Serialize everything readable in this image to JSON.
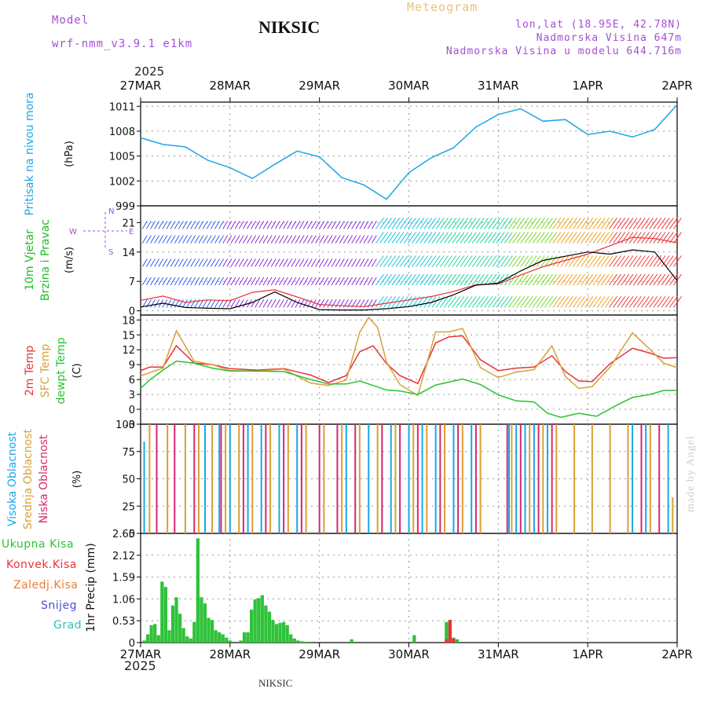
{
  "header": {
    "model_label": "Model",
    "model_value": "wrf-nmm_v3.9.1 e1km",
    "station": "NIKSIC",
    "meteogram": "Meteogram",
    "coords": "lon,lat (18.95E, 42.78N)",
    "elev": "Nadmorska Visina 647m",
    "elev_model": "Nadmorska Visina u modelu 644.716m",
    "year_top": "2025",
    "year_bottom": "2025",
    "footer_station": "NIKSIC",
    "credit": "made by Angel"
  },
  "colors": {
    "pressure": "#1aa7e8",
    "temp2m": "#e8333a",
    "sfc": "#d9a035",
    "dewpt": "#27c233",
    "high_cloud": "#1aa7e8",
    "mid_cloud": "#d9a035",
    "low_cloud": "#d8266e",
    "total_precip": "#2fc23a",
    "conv_precip": "#e8333a",
    "frz_precip": "#ef7a30",
    "snow": "#4b4bdb",
    "grad": "#2bbfbf",
    "wind_label": "#22bb22",
    "violet": "#a24fd6",
    "tan": "#e8c27a"
  },
  "chart_data": {
    "type": "meteogram",
    "x_axis": {
      "tick_labels": [
        "27MAR",
        "28MAR",
        "29MAR",
        "30MAR",
        "31MAR",
        "1APR",
        "2APR"
      ],
      "range_days": [
        0,
        6
      ]
    },
    "panels": [
      {
        "id": "pressure",
        "type": "line",
        "ylabel": "Pritisak na nivou mora",
        "unit": "(hPa)",
        "ylim": [
          999,
          1011.5
        ],
        "ticks": [
          999,
          1002,
          1005,
          1008,
          1011
        ],
        "grid": true,
        "series": [
          {
            "name": "Pritisak na nivou mora",
            "x": [
              0,
              0.25,
              0.5,
              0.75,
              1.0,
              1.25,
              1.5,
              1.75,
              2.0,
              2.25,
              2.5,
              2.75,
              3.0,
              3.25,
              3.5,
              3.75,
              4.0,
              4.25,
              4.5,
              4.75,
              5.0,
              5.25,
              5.5,
              5.75,
              6.0
            ],
            "values": [
              1007.2,
              1006.4,
              1006.1,
              1004.5,
              1003.6,
              1002.3,
              1004.0,
              1005.6,
              1004.9,
              1002.4,
              1001.5,
              999.8,
              1003.0,
              1004.8,
              1006.0,
              1008.5,
              1010.0,
              1010.7,
              1009.2,
              1009.4,
              1007.6,
              1008.0,
              1007.3,
              1008.2,
              1011.2
            ]
          }
        ]
      },
      {
        "id": "wind",
        "type": "line",
        "ylabel": [
          "10m Vjetar",
          "Brzina i Pravac"
        ],
        "unit": "(m/s)",
        "ylim": [
          -1,
          25
        ],
        "ticks": [
          0,
          7,
          14,
          21
        ],
        "grid": true,
        "compass": {
          "n": "N",
          "s": "S",
          "e": "E",
          "w": "W"
        },
        "series": [
          {
            "name": "speed",
            "x": [
              0,
              0.25,
              0.5,
              0.75,
              1.0,
              1.25,
              1.5,
              1.75,
              2.0,
              2.25,
              2.5,
              2.75,
              3.0,
              3.25,
              3.5,
              3.75,
              4.0,
              4.25,
              4.5,
              4.75,
              5.0,
              5.25,
              5.5,
              5.75,
              6.0
            ],
            "values": [
              2.5,
              3.5,
              2.0,
              2.6,
              2.4,
              4.4,
              5.0,
              3.3,
              1.5,
              1.2,
              1.0,
              1.8,
              2.6,
              3.4,
              4.6,
              6.2,
              6.4,
              8.5,
              10.5,
              12.0,
              13.5,
              15.5,
              17.5,
              17.2,
              16.2
            ]
          },
          {
            "name": "gust",
            "x": [
              0,
              0.25,
              0.5,
              0.75,
              1.0,
              1.25,
              1.5,
              1.75,
              2.0,
              2.25,
              2.5,
              2.75,
              3.0,
              3.25,
              3.5,
              3.75,
              4.0,
              4.25,
              4.5,
              4.75,
              5.0,
              5.25,
              5.5,
              5.75,
              6.0
            ],
            "values": [
              0.9,
              1.8,
              0.8,
              0.6,
              0.5,
              2.0,
              4.5,
              2.0,
              0.3,
              0.2,
              0.2,
              0.5,
              1.0,
              2.0,
              3.8,
              6.1,
              6.6,
              9.5,
              12.0,
              13.0,
              14.0,
              13.5,
              14.5,
              14.0,
              7.2
            ]
          }
        ]
      },
      {
        "id": "temperature",
        "type": "line",
        "ylabel": [
          "2m Temp",
          "SFC Temp",
          "dewpt Temp"
        ],
        "unit": "(C)",
        "ylim": [
          -3,
          19
        ],
        "ticks": [
          -3,
          0,
          3,
          6,
          9,
          12,
          15,
          18
        ],
        "grid": true,
        "series": [
          {
            "name": "2m Temp",
            "x": [
              0,
              0.1,
              0.25,
              0.4,
              0.6,
              0.8,
              1.0,
              1.3,
              1.6,
              1.9,
              2.1,
              2.3,
              2.45,
              2.6,
              2.75,
              2.9,
              3.1,
              3.3,
              3.45,
              3.6,
              3.8,
              4.0,
              4.2,
              4.4,
              4.6,
              4.75,
              4.9,
              5.05,
              5.25,
              5.5,
              5.7,
              5.85,
              6.0
            ],
            "values": [
              7.8,
              8.5,
              8.5,
              12.8,
              9.3,
              9.0,
              8.2,
              7.9,
              8.2,
              6.9,
              5.4,
              6.8,
              11.6,
              12.8,
              9.2,
              6.8,
              5.2,
              13.4,
              14.6,
              14.8,
              10.0,
              7.8,
              8.3,
              8.5,
              10.8,
              7.6,
              5.7,
              5.6,
              9.2,
              12.3,
              11.3,
              10.3,
              10.4
            ]
          },
          {
            "name": "SFC Temp",
            "x": [
              0,
              0.1,
              0.25,
              0.4,
              0.6,
              0.8,
              1.0,
              1.3,
              1.6,
              1.9,
              2.1,
              2.3,
              2.45,
              2.55,
              2.65,
              2.75,
              2.9,
              3.1,
              3.3,
              3.45,
              3.6,
              3.8,
              4.0,
              4.2,
              4.4,
              4.6,
              4.75,
              4.9,
              5.05,
              5.25,
              5.5,
              5.7,
              5.85,
              6.0
            ],
            "values": [
              6.7,
              7.4,
              8.3,
              15.8,
              9.7,
              9.0,
              7.8,
              7.7,
              8.1,
              5.3,
              4.8,
              5.9,
              15.5,
              18.5,
              16.5,
              9.5,
              5.0,
              2.8,
              15.6,
              15.6,
              16.3,
              8.4,
              6.4,
              7.5,
              8.0,
              12.8,
              6.6,
              4.2,
              4.6,
              8.5,
              15.4,
              12.0,
              9.3,
              8.4
            ]
          },
          {
            "name": "dewpt Temp",
            "x": [
              0,
              0.1,
              0.25,
              0.4,
              0.6,
              0.8,
              1.0,
              1.3,
              1.6,
              1.9,
              2.1,
              2.3,
              2.45,
              2.6,
              2.75,
              2.9,
              3.1,
              3.3,
              3.6,
              3.8,
              4.0,
              4.2,
              4.4,
              4.55,
              4.7,
              4.9,
              5.1,
              5.3,
              5.5,
              5.7,
              5.85,
              6.0
            ],
            "values": [
              4.2,
              5.9,
              7.9,
              9.7,
              9.3,
              8.3,
              7.7,
              7.7,
              7.6,
              6.0,
              5.1,
              5.1,
              5.7,
              4.8,
              3.9,
              3.7,
              3.0,
              4.9,
              6.1,
              5.0,
              2.9,
              1.7,
              1.5,
              -0.8,
              -1.6,
              -0.8,
              -1.4,
              0.6,
              2.4,
              3.0,
              3.8,
              3.8
            ]
          }
        ]
      },
      {
        "id": "cloud",
        "type": "bar",
        "ylabel": [
          "Visoka Oblacnost",
          "Srednja Oblacnost",
          "Niska Oblacnost"
        ],
        "unit": "(%)",
        "ylim": [
          0,
          100
        ],
        "ticks": [
          0,
          25,
          50,
          75,
          100
        ],
        "grid": true,
        "series": [
          {
            "name": "Visoka Oblacnost",
            "bars": [
              [
                0.04,
                84
              ],
              [
                0.72,
                100
              ],
              [
                0.88,
                100
              ],
              [
                1.0,
                100
              ],
              [
                1.2,
                100
              ],
              [
                1.35,
                100
              ],
              [
                1.55,
                100
              ],
              [
                1.75,
                100
              ],
              [
                2.3,
                100
              ],
              [
                2.55,
                100
              ],
              [
                2.8,
                100
              ],
              [
                3.0,
                100
              ],
              [
                3.15,
                100
              ],
              [
                3.3,
                100
              ],
              [
                3.5,
                100
              ],
              [
                3.7,
                100
              ],
              [
                4.12,
                100
              ],
              [
                4.2,
                100
              ],
              [
                4.3,
                100
              ],
              [
                4.4,
                100
              ],
              [
                4.55,
                100
              ],
              [
                5.5,
                100
              ],
              [
                5.65,
                100
              ],
              [
                5.9,
                100
              ]
            ]
          },
          {
            "name": "Srednja Oblacnost",
            "bars": [
              [
                0.1,
                100
              ],
              [
                0.3,
                100
              ],
              [
                0.5,
                100
              ],
              [
                0.65,
                100
              ],
              [
                0.8,
                100
              ],
              [
                0.95,
                100
              ],
              [
                1.1,
                100
              ],
              [
                1.25,
                100
              ],
              [
                1.45,
                100
              ],
              [
                1.65,
                100
              ],
              [
                1.85,
                100
              ],
              [
                2.05,
                100
              ],
              [
                2.25,
                100
              ],
              [
                2.45,
                100
              ],
              [
                2.65,
                100
              ],
              [
                2.85,
                100
              ],
              [
                3.05,
                100
              ],
              [
                3.2,
                100
              ],
              [
                3.4,
                100
              ],
              [
                3.6,
                100
              ],
              [
                3.8,
                100
              ],
              [
                4.15,
                100
              ],
              [
                4.35,
                100
              ],
              [
                4.5,
                100
              ],
              [
                4.65,
                100
              ],
              [
                4.85,
                100
              ],
              [
                5.05,
                100
              ],
              [
                5.25,
                100
              ],
              [
                5.45,
                100
              ],
              [
                5.7,
                100
              ],
              [
                5.95,
                33
              ]
            ]
          },
          {
            "name": "Niska Oblacnost",
            "bars": [
              [
                0.18,
                100
              ],
              [
                0.38,
                100
              ],
              [
                0.6,
                100
              ],
              [
                0.9,
                100
              ],
              [
                1.15,
                100
              ],
              [
                1.4,
                100
              ],
              [
                1.6,
                100
              ],
              [
                1.8,
                100
              ],
              [
                2.0,
                100
              ],
              [
                2.2,
                100
              ],
              [
                2.4,
                100
              ],
              [
                2.7,
                100
              ],
              [
                2.9,
                100
              ],
              [
                3.1,
                100
              ],
              [
                3.35,
                100
              ],
              [
                3.55,
                100
              ],
              [
                3.75,
                100
              ],
              [
                4.1,
                100
              ],
              [
                4.25,
                100
              ],
              [
                4.45,
                100
              ],
              [
                4.6,
                100
              ],
              [
                5.6,
                100
              ],
              [
                5.8,
                100
              ]
            ]
          }
        ]
      },
      {
        "id": "precip",
        "type": "bar",
        "ylabel": "1hr Precip",
        "unit": "(mm)",
        "ylim": [
          0,
          2.65
        ],
        "ticks": [
          0,
          0.53,
          1.06,
          1.59,
          2.12,
          2.65
        ],
        "tick_labels": [
          "0",
          "0.53",
          "1.06",
          "1.59",
          "2.12",
          "2.65"
        ],
        "grid": true,
        "legend": [
          "Ukupna Kisa",
          "Konvek.Kisa",
          "Zaledj.Kisa",
          "Snijeg",
          "Grad"
        ],
        "series": [
          {
            "name": "Ukupna Kisa",
            "x": [
              0.04,
              0.08,
              0.12,
              0.16,
              0.2,
              0.24,
              0.28,
              0.32,
              0.36,
              0.4,
              0.44,
              0.48,
              0.52,
              0.56,
              0.6,
              0.64,
              0.68,
              0.72,
              0.76,
              0.8,
              0.84,
              0.88,
              0.92,
              0.96,
              1.0,
              1.12,
              1.16,
              1.2,
              1.24,
              1.28,
              1.32,
              1.36,
              1.4,
              1.44,
              1.48,
              1.52,
              1.56,
              1.6,
              1.64,
              1.68,
              1.72,
              1.76,
              1.8,
              1.84,
              1.88,
              2.36,
              3.06,
              3.42,
              3.46,
              3.5,
              3.54
            ],
            "values": [
              0.05,
              0.2,
              0.42,
              0.45,
              0.18,
              1.48,
              1.35,
              0.3,
              0.9,
              1.1,
              0.7,
              0.35,
              0.15,
              0.1,
              0.5,
              2.53,
              1.1,
              0.95,
              0.6,
              0.55,
              0.3,
              0.25,
              0.2,
              0.12,
              0.05,
              0.05,
              0.25,
              0.25,
              0.8,
              1.05,
              1.08,
              1.15,
              0.9,
              0.75,
              0.55,
              0.45,
              0.48,
              0.5,
              0.42,
              0.2,
              0.1,
              0.05,
              0.03,
              0.02,
              0.02,
              0.08,
              0.18,
              0.5,
              0.55,
              0.12,
              0.08
            ]
          },
          {
            "name": "Konvek.Kisa",
            "x": [
              3.42,
              3.46,
              3.5
            ],
            "values": [
              0.08,
              0.55,
              0.1
            ]
          }
        ]
      }
    ]
  }
}
